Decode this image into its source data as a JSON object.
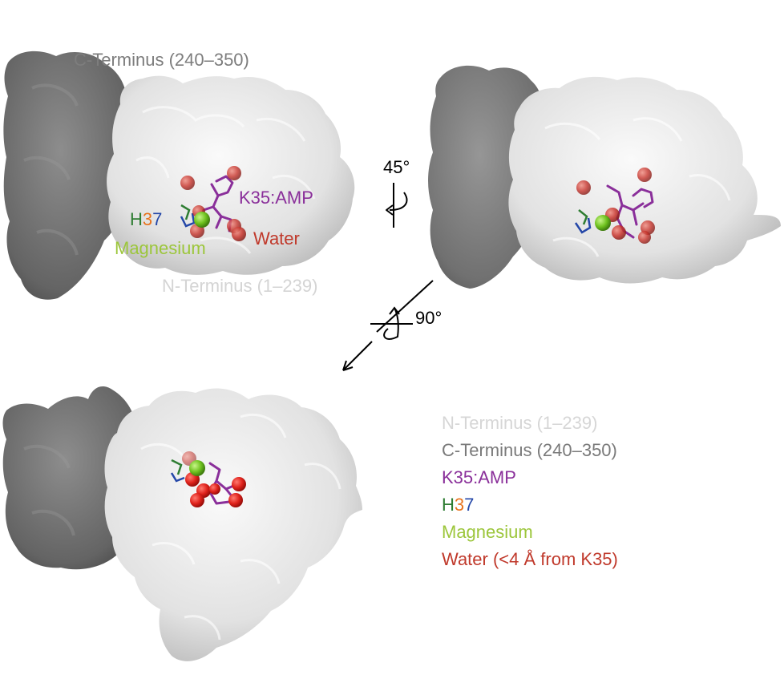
{
  "labels": {
    "c_terminus": "C-Terminus (240–350)",
    "n_terminus": "N-Terminus (1–239)",
    "k35amp": "K35:AMP",
    "h37_h": "H",
    "h37_3": "3",
    "h37_7": "7",
    "magnesium": "Magnesium",
    "water": "Water",
    "rot45": "45°",
    "rot90": "90°"
  },
  "legend": [
    {
      "key": "n_terminus",
      "text": "N-Terminus (1–239)",
      "color": "#d6d6d6"
    },
    {
      "key": "c_terminus",
      "text": "C-Terminus (240–350)",
      "color": "#7a7a7a"
    },
    {
      "key": "k35amp",
      "text": "K35:AMP",
      "color": "#8a2f9a"
    },
    {
      "key": "h37",
      "parts": [
        {
          "t": "H",
          "color": "#2e7d32"
        },
        {
          "t": "3",
          "color": "#e8731c"
        },
        {
          "t": "7",
          "color": "#2447a8"
        }
      ]
    },
    {
      "key": "magnesium",
      "text": "Magnesium",
      "color": "#9cc63b"
    },
    {
      "key": "water",
      "text": "Water (<4 Å from K35)",
      "color": "#c0392b"
    }
  ],
  "colors": {
    "c_terminal_surface": "#6e6e6e",
    "n_terminal_surface": "#e4e4e4",
    "ligand": "#8a2f9a",
    "magnesium": "#7ccf2e",
    "water": "#c03a34"
  }
}
